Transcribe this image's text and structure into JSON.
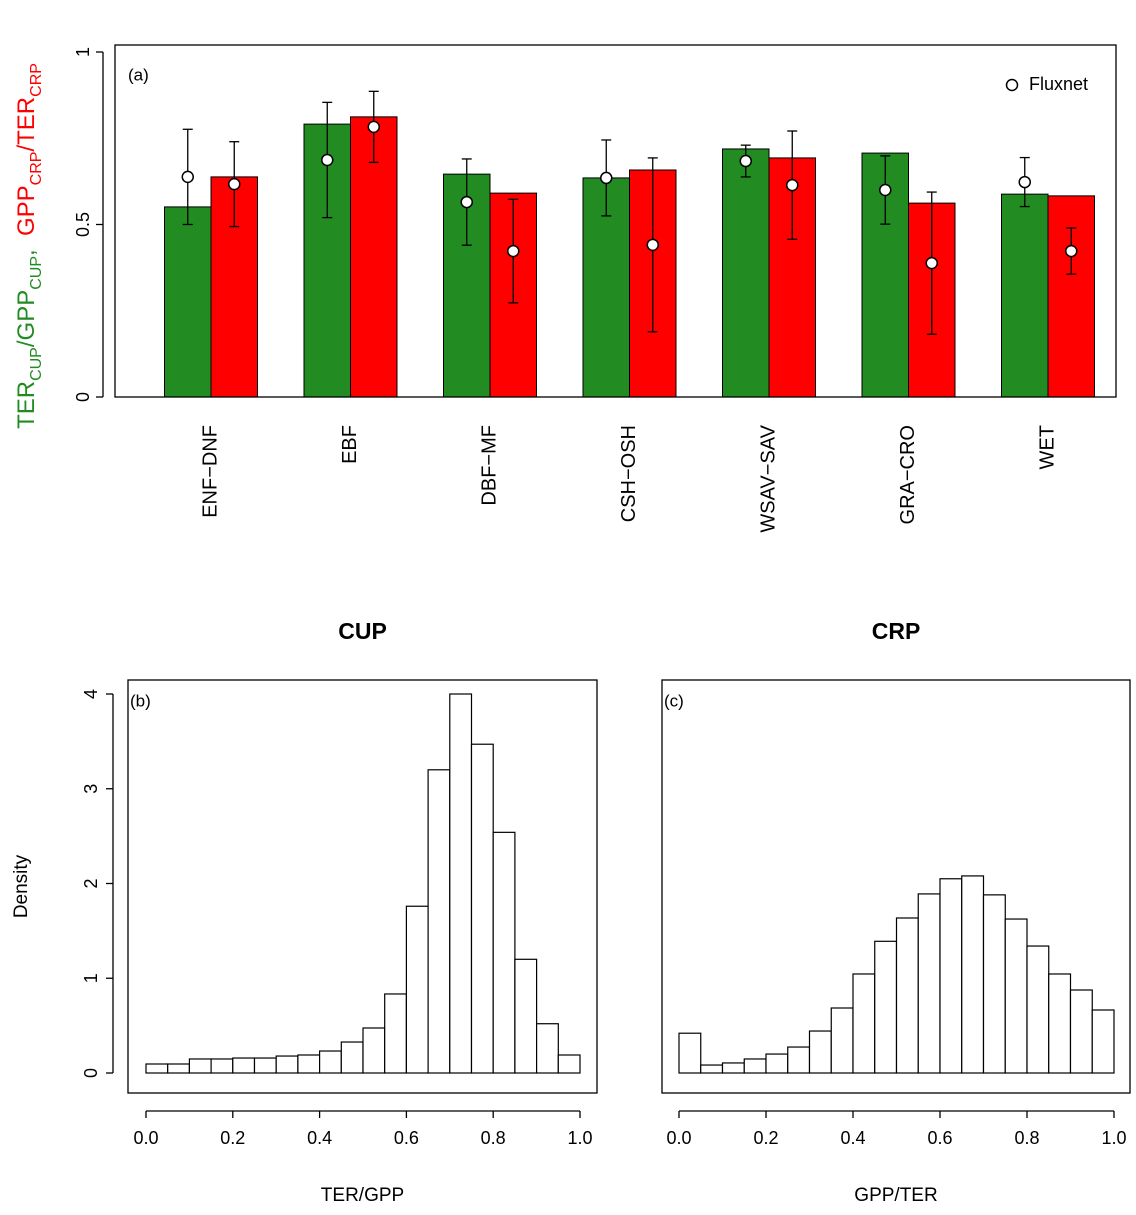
{
  "chart_data": [
    {
      "type": "bar",
      "panel_label": "(a)",
      "ylabel": [
        {
          "text": "TER",
          "color": "#228b22"
        },
        {
          "text": "CUP",
          "color": "#228b22",
          "subscript": true
        },
        {
          "text": "/GPP",
          "color": "#228b22"
        },
        {
          "text": "CUP",
          "color": "#228b22",
          "subscript": true
        },
        {
          "text": ",  ",
          "color": "#228b22"
        },
        {
          "text": "GPP",
          "color": "#ff0000"
        },
        {
          "text": "CRP",
          "color": "#ff0000",
          "subscript": true
        },
        {
          "text": "/TER",
          "color": "#ff0000"
        },
        {
          "text": "CRP",
          "color": "#ff0000",
          "subscript": true
        }
      ],
      "categories": [
        "ENF−DNF",
        "EBF",
        "DBF−MF",
        "CSH−OSH",
        "WSAV−SAV",
        "GRA−CRO",
        "WET"
      ],
      "series": [
        {
          "color": "#228b22",
          "values": [
            0.551,
            0.791,
            0.646,
            0.635,
            0.719,
            0.707,
            0.588
          ],
          "fluxnet": [
            0.638,
            0.687,
            0.565,
            0.635,
            0.684,
            0.6,
            0.623
          ],
          "fluxnet_errors": [
            0.138,
            0.167,
            0.125,
            0.11,
            0.046,
            0.099,
            0.071
          ]
        },
        {
          "color": "#ff0000",
          "values": [
            0.638,
            0.812,
            0.591,
            0.658,
            0.693,
            0.562,
            0.583
          ],
          "fluxnet": [
            0.617,
            0.783,
            0.423,
            0.441,
            0.614,
            0.388,
            0.423
          ],
          "fluxnet_errors": [
            0.123,
            0.103,
            0.15,
            0.252,
            0.157,
            0.206,
            0.067
          ]
        }
      ],
      "legend": {
        "label": "Fluxnet",
        "position": "topright"
      },
      "ylim": [
        0,
        1
      ],
      "yticks": [
        0,
        0.5,
        1
      ]
    },
    {
      "type": "histogram",
      "title": "CUP",
      "panel_label": "(b)",
      "xlabel": "TER/GPP",
      "ylabel": "Density",
      "bins": [
        0,
        0.05,
        0.1,
        0.15,
        0.2,
        0.25,
        0.3,
        0.35,
        0.4,
        0.45,
        0.5,
        0.55,
        0.6,
        0.65,
        0.7,
        0.75,
        0.8,
        0.85,
        0.9,
        0.95,
        1
      ],
      "values": [
        0.095,
        0.095,
        0.148,
        0.148,
        0.158,
        0.158,
        0.179,
        0.19,
        0.232,
        0.327,
        0.475,
        0.834,
        1.76,
        3.2,
        4.0,
        3.47,
        2.54,
        1.2,
        0.52,
        0.19
      ],
      "color": "#ffffff",
      "xlim": [
        0,
        1
      ],
      "ylim": [
        0,
        4
      ],
      "xticks": [
        {
          "value": 0,
          "label": "0.0"
        },
        {
          "value": 0.2,
          "label": "0.2"
        },
        {
          "value": 0.4,
          "label": "0.4"
        },
        {
          "value": 0.6,
          "label": "0.6"
        },
        {
          "value": 0.8,
          "label": "0.8"
        },
        {
          "value": 1,
          "label": "1.0"
        }
      ],
      "yticks": [
        0,
        1,
        2,
        3,
        4
      ]
    },
    {
      "type": "histogram",
      "title": "CRP",
      "panel_label": "(c)",
      "xlabel": "GPP/TER",
      "bins": [
        0,
        0.05,
        0.1,
        0.15,
        0.2,
        0.25,
        0.3,
        0.35,
        0.4,
        0.45,
        0.5,
        0.55,
        0.6,
        0.65,
        0.7,
        0.75,
        0.8,
        0.85,
        0.9,
        0.95,
        1
      ],
      "values": [
        0.42,
        0.084,
        0.106,
        0.148,
        0.2,
        0.274,
        0.443,
        0.686,
        1.045,
        1.39,
        1.636,
        1.89,
        2.05,
        2.08,
        1.88,
        1.625,
        1.34,
        1.045,
        0.876,
        0.665
      ],
      "color": "#ffffff",
      "xlim": [
        0,
        1
      ],
      "ylim": [
        0,
        4
      ],
      "xticks": [
        {
          "value": 0,
          "label": "0.0"
        },
        {
          "value": 0.2,
          "label": "0.2"
        },
        {
          "value": 0.4,
          "label": "0.4"
        },
        {
          "value": 0.6,
          "label": "0.6"
        },
        {
          "value": 0.8,
          "label": "0.8"
        },
        {
          "value": 1,
          "label": "1.0"
        }
      ]
    }
  ]
}
